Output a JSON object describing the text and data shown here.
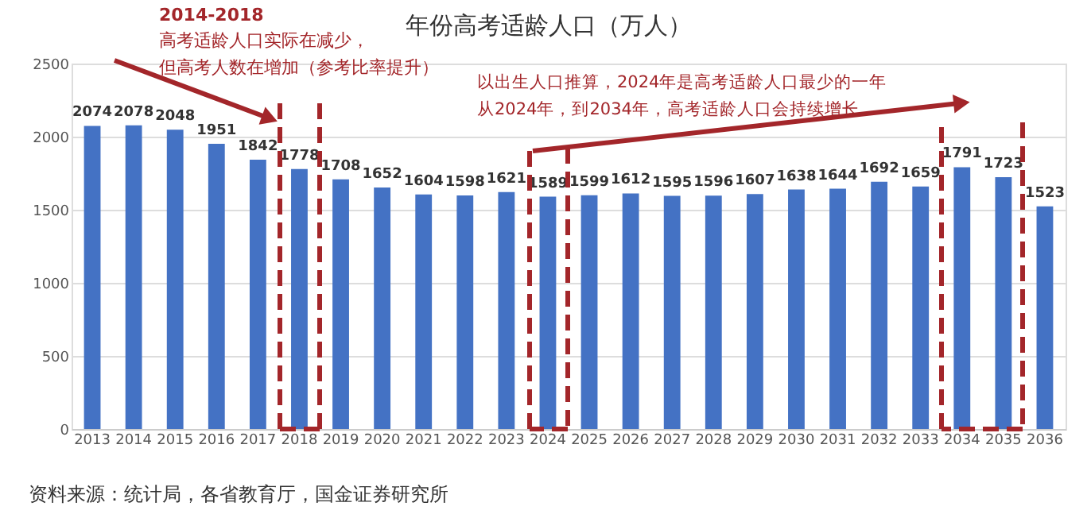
{
  "chart_data": {
    "type": "bar",
    "title": "年份高考适龄人口（万人）",
    "categories": [
      "2013",
      "2014",
      "2015",
      "2016",
      "2017",
      "2018",
      "2019",
      "2020",
      "2021",
      "2022",
      "2023",
      "2024",
      "2025",
      "2026",
      "2027",
      "2028",
      "2029",
      "2030",
      "2031",
      "2032",
      "2033",
      "2034",
      "2035",
      "2036"
    ],
    "values": [
      2074,
      2078,
      2048,
      1951,
      1842,
      1778,
      1708,
      1652,
      1604,
      1598,
      1621,
      1589,
      1599,
      1612,
      1595,
      1596,
      1607,
      1638,
      1644,
      1692,
      1659,
      1791,
      1723,
      1523
    ],
    "color": "#4472c4",
    "ylim": [
      0,
      2500
    ],
    "yticks": [
      0,
      500,
      1000,
      1500,
      2000,
      2500
    ],
    "grid": "y",
    "data_labels": true,
    "annotations": [
      "2014-2018",
      "高考适龄人口实际在减少，",
      "但高考人数在增加（参考比率提升）",
      "以出生人口推算，2024年是高考适龄人口最少的一年",
      "从2024年，到2034年，高考适龄人口会持续增长",
      "资料来源：统计局，各省教育厅，国金证券研究所"
    ]
  }
}
